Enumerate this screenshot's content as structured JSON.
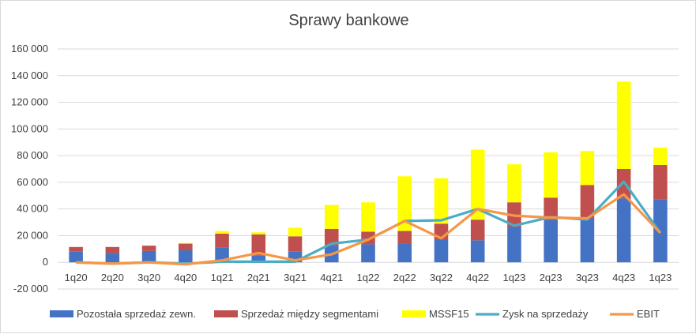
{
  "chart_data": {
    "type": "bar",
    "title": "Sprawy bankowe",
    "categories": [
      "1q20",
      "2q20",
      "3q20",
      "4q20",
      "1q21",
      "2q21",
      "3q21",
      "4q21",
      "1q22",
      "2q22",
      "3q22",
      "4q22",
      "1q23",
      "2q23",
      "3q23",
      "4q23",
      "1q23"
    ],
    "ylim": [
      -20000,
      160000
    ],
    "yticks": [
      -20000,
      0,
      20000,
      40000,
      60000,
      80000,
      100000,
      120000,
      140000,
      160000
    ],
    "ytick_labels": [
      "-20 000",
      "0",
      "20 000",
      "40 000",
      "60 000",
      "80 000",
      "100 000",
      "120 000",
      "140 000",
      "160 000"
    ],
    "grid": true,
    "legend_position": "bottom",
    "stacked_bars": [
      {
        "name": "Pozostała sprzedaż zewn.",
        "color": "#4472c4",
        "values": [
          8000,
          7000,
          8500,
          9000,
          11000,
          5000,
          8000,
          12500,
          13500,
          14000,
          17000,
          16500,
          26500,
          32000,
          33000,
          48000,
          47000
        ]
      },
      {
        "name": "Sprzedaż między segmentami",
        "color": "#c0504d",
        "values": [
          3500,
          4500,
          4000,
          5000,
          10500,
          16000,
          11500,
          12500,
          9500,
          9500,
          12000,
          15500,
          18500,
          16500,
          25000,
          22000,
          26000
        ]
      },
      {
        "name": "MSSF15",
        "color": "#ffff00",
        "values": [
          0,
          0,
          0,
          500,
          2000,
          1500,
          6500,
          18000,
          22000,
          41000,
          34000,
          52500,
          28500,
          34000,
          25500,
          65500,
          13000
        ]
      }
    ],
    "lines": [
      {
        "name": "Zysk na sprzedaży",
        "color": "#4bacc6",
        "values": [
          0,
          -1000,
          0,
          -1000,
          500,
          500,
          500,
          14000,
          17000,
          31000,
          31500,
          40000,
          27500,
          34000,
          32000,
          60500,
          22000
        ]
      },
      {
        "name": "EBIT",
        "color": "#f79646",
        "values": [
          0,
          -1000,
          0,
          -1500,
          1500,
          7000,
          1500,
          6000,
          17000,
          31000,
          18000,
          40000,
          35000,
          33500,
          33000,
          51000,
          22000
        ]
      }
    ]
  }
}
